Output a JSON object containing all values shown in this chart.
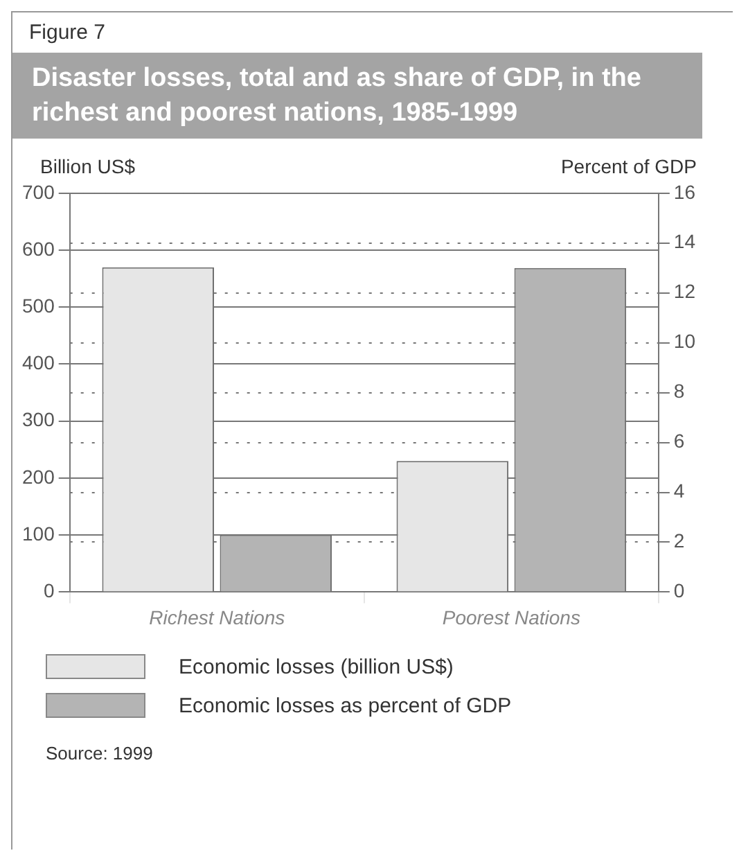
{
  "chart_data": {
    "type": "bar",
    "title": "Disaster losses, total and as share of GDP, in the richest and poorest nations, 1985-1999",
    "ylabel": "Billion US$",
    "y2label": "Percent of GDP",
    "categories": [
      "Richest Nations",
      "Poorest Nations"
    ],
    "series": [
      {
        "name": "Economic losses (billion US$)",
        "color": "#e6e6e6",
        "values": [
          570,
          230
        ]
      },
      {
        "name": "Economic losses as percent of GDP",
        "color": "#b4b4b4",
        "values": [
          2.3,
          13.0
        ],
        "axis": "y2"
      }
    ],
    "ylim": [
      0,
      700
    ],
    "yticks": [
      0,
      100,
      200,
      300,
      400,
      500,
      600,
      700
    ],
    "y2lim": [
      0,
      16
    ],
    "y2ticks": [
      0,
      2,
      4,
      6,
      8,
      10,
      12,
      14,
      16
    ],
    "grid": true,
    "legend": "bottom",
    "annotations": [
      "Figure 7",
      "Source: 1999"
    ]
  }
}
